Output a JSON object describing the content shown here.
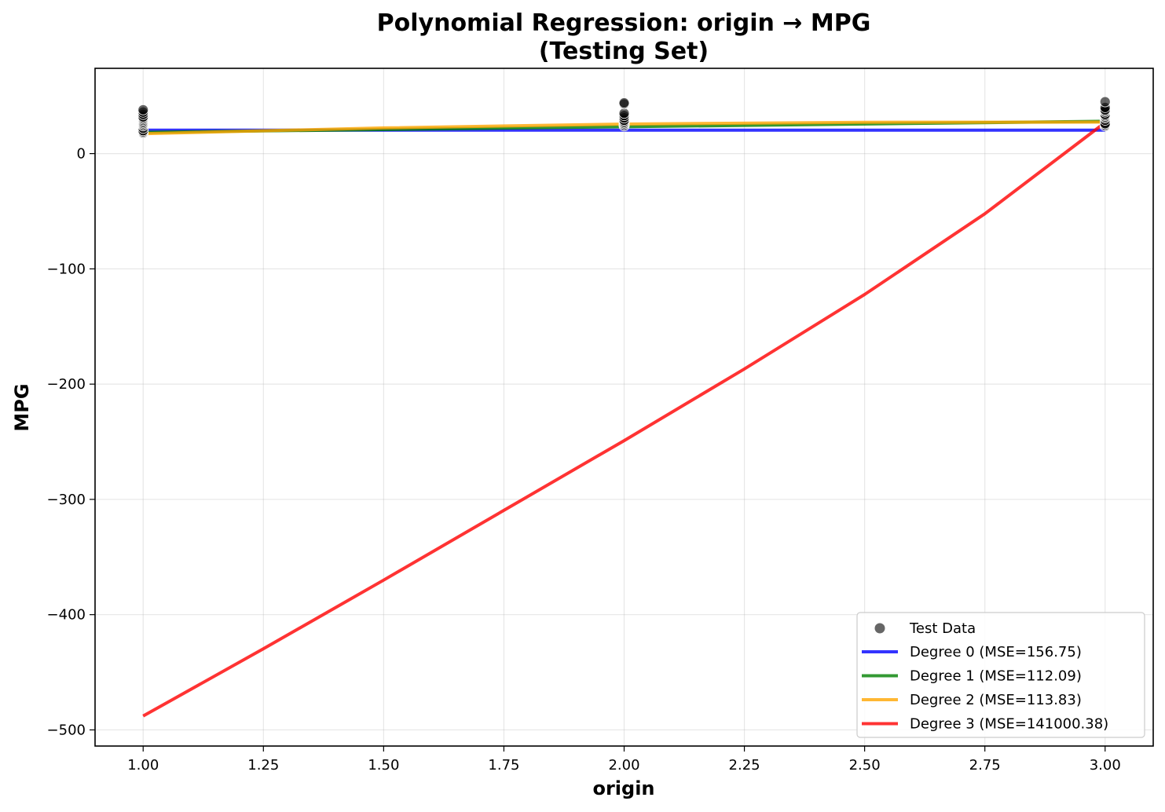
{
  "chart_data": {
    "type": "scatter",
    "title_line1": "Polynomial Regression: origin → MPG",
    "title_line2": "(Testing Set)",
    "xlabel": "origin",
    "ylabel": "MPG",
    "xlim": [
      0.9,
      3.1
    ],
    "ylim": [
      -514,
      74
    ],
    "x_ticks": [
      {
        "value": 1.0,
        "label": "1.00"
      },
      {
        "value": 1.25,
        "label": "1.25"
      },
      {
        "value": 1.5,
        "label": "1.50"
      },
      {
        "value": 1.75,
        "label": "1.75"
      },
      {
        "value": 2.0,
        "label": "2.00"
      },
      {
        "value": 2.25,
        "label": "2.25"
      },
      {
        "value": 2.5,
        "label": "2.50"
      },
      {
        "value": 2.75,
        "label": "2.75"
      },
      {
        "value": 3.0,
        "label": "3.00"
      }
    ],
    "y_ticks": [
      {
        "value": 0,
        "label": "0"
      },
      {
        "value": -100,
        "label": "−100"
      },
      {
        "value": -200,
        "label": "−200"
      },
      {
        "value": -300,
        "label": "−300"
      },
      {
        "value": -400,
        "label": "−400"
      },
      {
        "value": -500,
        "label": "−500"
      }
    ],
    "grid": true,
    "legend_position": "bottom-right",
    "scatter": {
      "name": "Test Data",
      "color": "#000000",
      "x": [
        1,
        1,
        1,
        1,
        1,
        1,
        1,
        1,
        1,
        1,
        1,
        1,
        1,
        1,
        1,
        1,
        2,
        2,
        2,
        2,
        2,
        2,
        2,
        2,
        2,
        2,
        2,
        3,
        3,
        3,
        3,
        3,
        3,
        3,
        3,
        3,
        3,
        3,
        3,
        3
      ],
      "y": [
        18,
        19,
        20,
        22,
        24,
        25,
        26,
        27,
        28,
        29,
        30,
        31,
        32,
        34,
        36,
        38,
        24,
        25,
        26,
        27,
        28,
        29,
        31,
        33,
        35,
        43,
        44,
        24,
        25,
        26,
        29,
        31,
        32,
        33,
        34,
        36,
        37,
        38,
        40,
        45
      ]
    },
    "series": [
      {
        "name": "Degree 0",
        "legend": "Degree 0 (MSE=156.75)",
        "color": "#0000ff",
        "x": [
          1.0,
          3.0
        ],
        "y": [
          20.3,
          20.3
        ]
      },
      {
        "name": "Degree 1",
        "legend": "Degree 1 (MSE=112.09)",
        "color": "#008000",
        "x": [
          1.0,
          2.0,
          3.0
        ],
        "y": [
          18.5,
          23.3,
          28.1
        ]
      },
      {
        "name": "Degree 2",
        "legend": "Degree 2 (MSE=113.83)",
        "color": "#ffa500",
        "x": [
          1.0,
          1.5,
          2.0,
          2.5,
          3.0
        ],
        "y": [
          17.3,
          22.3,
          25.6,
          27.2,
          27.3
        ]
      },
      {
        "name": "Degree 3",
        "legend": "Degree 3 (MSE=141000.38)",
        "color": "#ff0000",
        "x": [
          1.0,
          1.25,
          1.5,
          1.75,
          2.0,
          2.25,
          2.5,
          2.75,
          3.0
        ],
        "y": [
          -488,
          -429.6,
          -370,
          -309.5,
          -249,
          -186.8,
          -122.2,
          -52.2,
          27
        ]
      }
    ]
  }
}
